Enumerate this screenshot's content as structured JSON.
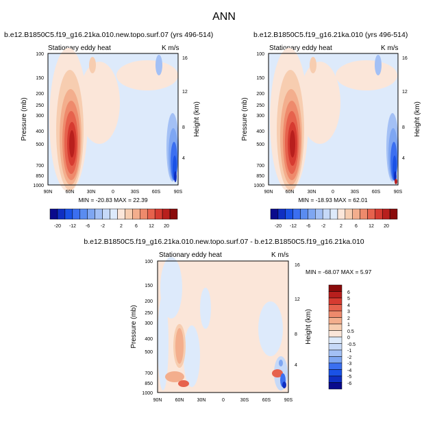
{
  "page": {
    "title": "ANN"
  },
  "chart_data": [
    {
      "type": "heatmap",
      "title": "b.e12.B1850C5.f19_g16.21ka.010.new.topo.surf.07 (yrs 496-514)",
      "left_label": "Stationary eddy heat",
      "right_label": "K m/s",
      "xlabel": "",
      "ylabel": "Pressure (mb)",
      "ylabel_right": "Height (km)",
      "x_ticks": [
        "90N",
        "60N",
        "30N",
        "0",
        "30S",
        "60S",
        "90S"
      ],
      "y_ticks": [
        "100",
        "150",
        "200",
        "250",
        "300",
        "400",
        "500",
        "700",
        "850",
        "1000"
      ],
      "y_right_ticks": [
        "16",
        "12",
        "8",
        "4"
      ],
      "ylim": [
        1000,
        100
      ],
      "min_max_text": "MIN = -20.83  MAX =  22.39",
      "colorbar": {
        "labels": [
          "-20",
          "-12",
          "-6",
          "-2",
          "2",
          "6",
          "12",
          "20"
        ],
        "colors": [
          "#0a0a8c",
          "#0f2fc2",
          "#1a52e6",
          "#3b6ff0",
          "#5a8cf0",
          "#7ea6f2",
          "#a3c0f5",
          "#c6d9f8",
          "#ddeafb",
          "#fbe6d9",
          "#f7cdb0",
          "#f3ae8d",
          "#ee8a6c",
          "#e6624d",
          "#d63b31",
          "#b81f1d",
          "#8a0b0b"
        ]
      },
      "features": [
        {
          "lat": 60,
          "p": 480,
          "value": 22.4
        },
        {
          "lat": -82,
          "p": 650,
          "value": -20.8
        },
        {
          "lat": 20,
          "p": 300,
          "value": 2.0
        }
      ]
    },
    {
      "type": "heatmap",
      "title": "b.e12.B1850C5.f19_g16.21ka.010 (yrs 496-514)",
      "left_label": "Stationary eddy heat",
      "right_label": "K m/s",
      "xlabel": "",
      "ylabel": "Pressure (mb)",
      "ylabel_right": "Height (km)",
      "x_ticks": [
        "90N",
        "60N",
        "30N",
        "0",
        "30S",
        "60S",
        "90S"
      ],
      "y_ticks": [
        "100",
        "150",
        "200",
        "250",
        "300",
        "400",
        "500",
        "700",
        "850",
        "1000"
      ],
      "y_right_ticks": [
        "16",
        "12",
        "8",
        "4"
      ],
      "ylim": [
        1000,
        100
      ],
      "min_max_text": "MIN = -18.93  MAX =  62.01",
      "colorbar": {
        "labels": [
          "-20",
          "-12",
          "-6",
          "-2",
          "2",
          "6",
          "12",
          "20"
        ],
        "colors": [
          "#0a0a8c",
          "#0f2fc2",
          "#1a52e6",
          "#3b6ff0",
          "#5a8cf0",
          "#7ea6f2",
          "#a3c0f5",
          "#c6d9f8",
          "#ddeafb",
          "#fbe6d9",
          "#f7cdb0",
          "#f3ae8d",
          "#ee8a6c",
          "#e6624d",
          "#d63b31",
          "#b81f1d",
          "#8a0b0b"
        ]
      },
      "features": [
        {
          "lat": 60,
          "p": 480,
          "value": 21.0
        },
        {
          "lat": -82,
          "p": 650,
          "value": -18.9
        },
        {
          "lat": -88,
          "p": 950,
          "value": 62.0
        }
      ]
    },
    {
      "type": "heatmap",
      "title": "b.e12.B1850C5.f19_g16.21ka.010.new.topo.surf.07 - b.e12.B1850C5.f19_g16.21ka.010",
      "left_label": "Stationary eddy heat",
      "right_label": "K m/s",
      "xlabel": "",
      "ylabel": "Pressure (mb)",
      "ylabel_right": "Height (km)",
      "x_ticks": [
        "90N",
        "60N",
        "30N",
        "0",
        "30S",
        "60S",
        "90S"
      ],
      "y_ticks": [
        "100",
        "150",
        "200",
        "250",
        "300",
        "400",
        "500",
        "700",
        "850",
        "1000"
      ],
      "y_right_ticks": [
        "16",
        "12",
        "8",
        "4"
      ],
      "ylim": [
        1000,
        100
      ],
      "min_max_text": "MIN = -68.07  MAX =  5.97",
      "colorbar": {
        "labels": [
          "6",
          "5",
          "4",
          "3",
          "2",
          "1",
          "0.5",
          "0",
          "-0.5",
          "-1",
          "-2",
          "-3",
          "-4",
          "-5",
          "-6"
        ],
        "colors": [
          "#8a0b0b",
          "#b81f1d",
          "#d63b31",
          "#e6624d",
          "#ee8a6c",
          "#f3ae8d",
          "#f7cdb0",
          "#fbe6d9",
          "#ddeafb",
          "#c6d9f8",
          "#a3c0f5",
          "#7ea6f2",
          "#3b6ff0",
          "#1a52e6",
          "#0f2fc2",
          "#0a0a8c"
        ]
      },
      "features": [
        {
          "lat": 65,
          "p": 450,
          "value": 1.5
        },
        {
          "lat": -85,
          "p": 800,
          "value": -6.0
        }
      ]
    }
  ]
}
